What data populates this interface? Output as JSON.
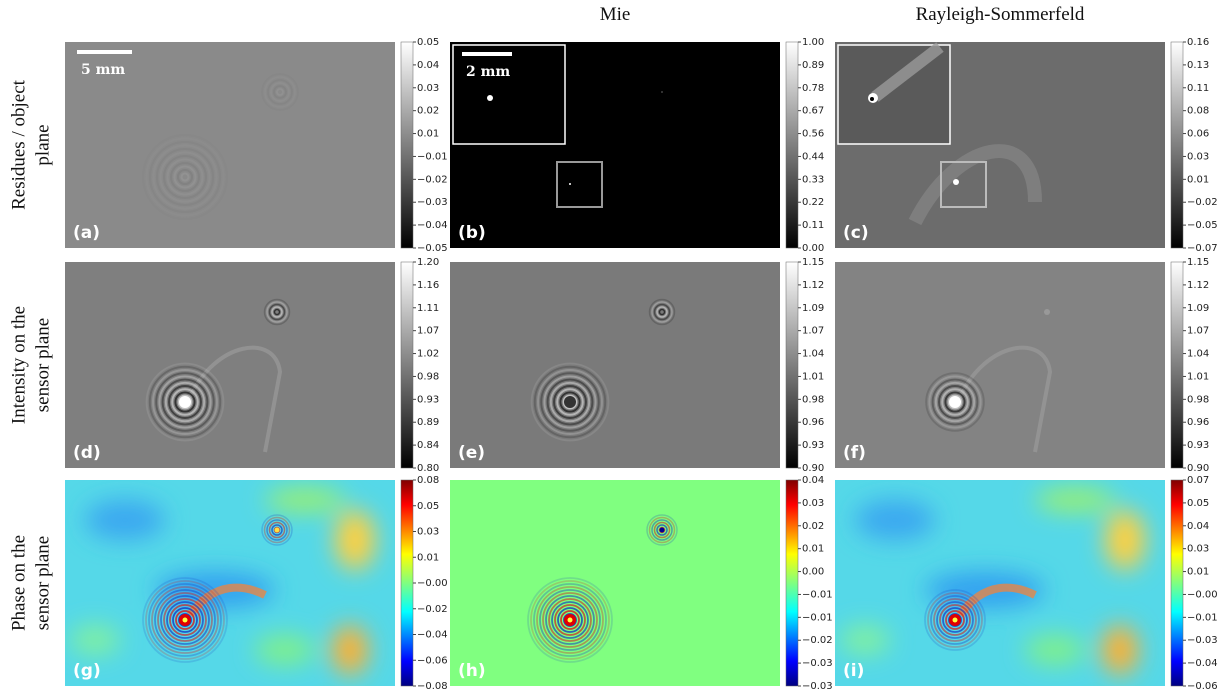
{
  "column_titles": [
    "Mie",
    "Rayleigh-Sommerfeld"
  ],
  "row_labels": [
    [
      "Residues / object",
      "plane"
    ],
    [
      "Intensity on the",
      "sensor plane"
    ],
    [
      "Phase on the",
      "sensor plane"
    ]
  ],
  "panels": [
    {
      "label": "(a)",
      "scale_bar": "5 mm",
      "colorbar": [
        "0.05",
        "0.04",
        "0.03",
        "0.02",
        "0.01",
        "−0.01",
        "−0.02",
        "−0.03",
        "−0.04",
        "−0.05"
      ]
    },
    {
      "label": "(b)",
      "scale_bar": "2 mm",
      "colorbar": [
        "1.00",
        "0.89",
        "0.78",
        "0.67",
        "0.56",
        "0.44",
        "0.33",
        "0.22",
        "0.11",
        "0.00"
      ]
    },
    {
      "label": "(c)",
      "colorbar": [
        "0.16",
        "0.13",
        "0.11",
        "0.08",
        "0.06",
        "0.03",
        "0.01",
        "−0.02",
        "−0.05",
        "−0.07"
      ]
    },
    {
      "label": "(d)",
      "colorbar": [
        "1.20",
        "1.16",
        "1.11",
        "1.07",
        "1.02",
        "0.98",
        "0.93",
        "0.89",
        "0.84",
        "0.80"
      ]
    },
    {
      "label": "(e)",
      "colorbar": [
        "1.15",
        "1.12",
        "1.09",
        "1.07",
        "1.04",
        "1.01",
        "0.98",
        "0.96",
        "0.93",
        "0.90"
      ]
    },
    {
      "label": "(f)",
      "colorbar": [
        "1.15",
        "1.12",
        "1.09",
        "1.07",
        "1.04",
        "1.01",
        "0.98",
        "0.96",
        "0.93",
        "0.90"
      ]
    },
    {
      "label": "(g)",
      "colorbar": [
        "0.08",
        "0.05",
        "0.03",
        "0.01",
        "−0.00",
        "−0.02",
        "−0.04",
        "−0.06",
        "−0.08"
      ]
    },
    {
      "label": "(h)",
      "colorbar": [
        "0.04",
        "0.03",
        "0.02",
        "0.01",
        "0.00",
        "−0.01",
        "−0.01",
        "−0.02",
        "−0.03",
        "−0.03"
      ]
    },
    {
      "label": "(i)",
      "colorbar": [
        "0.07",
        "0.05",
        "0.04",
        "0.03",
        "0.01",
        "−0.00",
        "−0.01",
        "−0.03",
        "−0.04",
        "−0.06"
      ]
    }
  ]
}
